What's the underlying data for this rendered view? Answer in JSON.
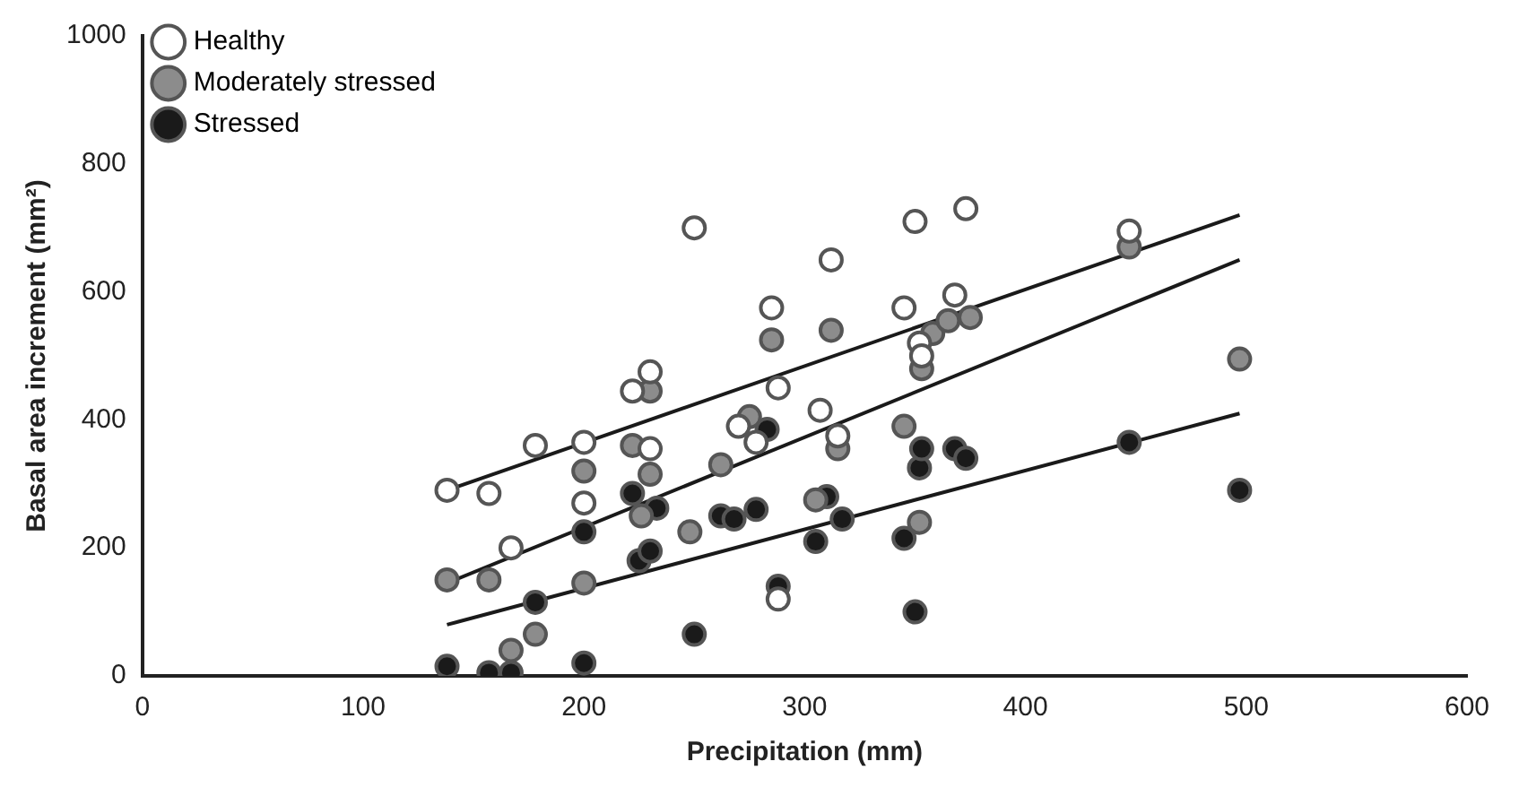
{
  "chart_data": {
    "type": "scatter",
    "xlabel": "Precipitation (mm)",
    "ylabel": "Basal area increment (mm²)",
    "xlim": [
      0,
      600
    ],
    "xticks": [
      0,
      100,
      200,
      300,
      400,
      500,
      600
    ],
    "ylim": [
      0,
      1000
    ],
    "yticks": [
      0,
      200,
      400,
      600,
      800,
      1000
    ],
    "grid": false,
    "legend": "top left",
    "marker": "circle",
    "series": [
      {
        "name": "Healthy",
        "color": "#ffffff",
        "x": [
          138,
          157,
          167,
          178,
          200,
          200,
          222,
          230,
          230,
          250,
          270,
          278,
          285,
          288,
          288,
          307,
          312,
          315,
          345,
          350,
          352,
          353,
          368,
          373,
          447
        ],
        "values": [
          290,
          285,
          200,
          360,
          365,
          270,
          445,
          475,
          355,
          700,
          390,
          365,
          575,
          450,
          120,
          415,
          650,
          375,
          575,
          710,
          520,
          500,
          595,
          730,
          695
        ]
      },
      {
        "name": "Moderately stressed",
        "color": "#8c8c8c",
        "x": [
          138,
          157,
          167,
          178,
          200,
          200,
          222,
          226,
          230,
          230,
          248,
          262,
          275,
          285,
          305,
          312,
          315,
          345,
          352,
          353,
          358,
          365,
          375,
          447,
          497
        ],
        "values": [
          150,
          150,
          40,
          65,
          145,
          320,
          360,
          250,
          315,
          445,
          225,
          330,
          405,
          525,
          275,
          540,
          355,
          390,
          240,
          480,
          535,
          555,
          560,
          670,
          495
        ]
      },
      {
        "name": "Stressed",
        "color": "#1a1a1a",
        "x": [
          138,
          157,
          167,
          178,
          200,
          200,
          222,
          225,
          230,
          233,
          250,
          262,
          268,
          278,
          283,
          288,
          305,
          310,
          317,
          345,
          350,
          352,
          353,
          368,
          373,
          447,
          497
        ],
        "values": [
          15,
          5,
          5,
          115,
          225,
          20,
          285,
          180,
          195,
          262,
          65,
          250,
          245,
          260,
          385,
          140,
          210,
          280,
          245,
          215,
          100,
          325,
          355,
          355,
          340,
          365,
          290
        ]
      },
      {
        "type": "line",
        "color": "#1a1a1a",
        "marker": "none",
        "x": [
          138,
          497
        ],
        "values": [
          290,
          720
        ]
      },
      {
        "type": "line",
        "color": "#1a1a1a",
        "marker": "none",
        "x": [
          138,
          497
        ],
        "values": [
          145,
          650
        ]
      },
      {
        "type": "line",
        "color": "#1a1a1a",
        "marker": "none",
        "x": [
          138,
          497
        ],
        "values": [
          80,
          410
        ]
      }
    ]
  }
}
